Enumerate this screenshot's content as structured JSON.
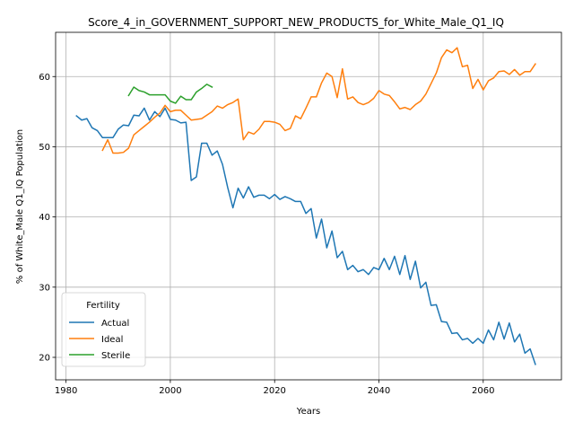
{
  "chart_data": {
    "type": "line",
    "title": "Score_4_in_GOVERNMENT_SUPPORT_NEW_PRODUCTS_for_White_Male_Q1_IQ",
    "xlabel": "Years",
    "ylabel": "% of White_Male Q1_IQ Population",
    "xlim": [
      1978,
      2075
    ],
    "ylim": [
      16.8,
      66.3
    ],
    "xticks": [
      1980,
      2000,
      2020,
      2040,
      2060
    ],
    "yticks": [
      20,
      30,
      40,
      50,
      60
    ],
    "grid": true,
    "legend": {
      "title": "Fertility",
      "position": "lower-left"
    },
    "series": [
      {
        "name": "Actual",
        "color": "#1f77b4",
        "x": [
          1982,
          1983,
          1984,
          1985,
          1986,
          1987,
          1988,
          1989,
          1990,
          1991,
          1992,
          1993,
          1994,
          1995,
          1996,
          1997,
          1998,
          1999,
          2000,
          2001,
          2002,
          2003,
          2004,
          2005,
          2006,
          2007,
          2008,
          2009,
          2010,
          2011,
          2012,
          2013,
          2014,
          2015,
          2016,
          2017,
          2018,
          2019,
          2020,
          2021,
          2022,
          2023,
          2024,
          2025,
          2026,
          2027,
          2028,
          2029,
          2030,
          2031,
          2032,
          2033,
          2034,
          2035,
          2036,
          2037,
          2038,
          2039,
          2040,
          2041,
          2042,
          2043,
          2044,
          2045,
          2046,
          2047,
          2048,
          2049,
          2050,
          2051,
          2052,
          2053,
          2054,
          2055,
          2056,
          2057,
          2058,
          2059,
          2060,
          2061,
          2062,
          2063,
          2064,
          2065,
          2066,
          2067,
          2068,
          2069,
          2070
        ],
        "values": [
          54.4,
          53.8,
          54.0,
          52.7,
          52.3,
          51.3,
          51.3,
          51.3,
          52.5,
          53.1,
          53.0,
          54.5,
          54.4,
          55.5,
          53.8,
          55.0,
          54.3,
          55.5,
          53.9,
          53.8,
          53.4,
          53.5,
          45.2,
          45.7,
          50.5,
          50.5,
          48.8,
          49.4,
          47.5,
          44.2,
          41.3,
          44.1,
          42.7,
          44.3,
          42.8,
          43.1,
          43.1,
          42.6,
          43.2,
          42.5,
          42.9,
          42.6,
          42.2,
          42.2,
          40.5,
          41.2,
          37.0,
          39.7,
          35.6,
          38.0,
          34.2,
          35.1,
          32.5,
          33.1,
          32.2,
          32.5,
          31.8,
          32.8,
          32.5,
          34.1,
          32.5,
          34.4,
          31.8,
          34.5,
          31.1,
          33.7,
          29.9,
          30.7,
          27.4,
          27.5,
          25.1,
          25.0,
          23.4,
          23.5,
          22.5,
          22.7,
          22.0,
          22.7,
          22.0,
          23.9,
          22.5,
          25.0,
          22.6,
          24.9,
          22.2,
          23.3,
          20.6,
          21.2,
          19.0
        ]
      },
      {
        "name": "Ideal",
        "color": "#ff7f0e",
        "x": [
          1987,
          1988,
          1989,
          1990,
          1991,
          1992,
          1993,
          1994,
          1995,
          1996,
          1997,
          1998,
          1999,
          2000,
          2001,
          2002,
          2003,
          2004,
          2005,
          2006,
          2007,
          2008,
          2009,
          2010,
          2011,
          2012,
          2013,
          2014,
          2015,
          2016,
          2017,
          2018,
          2019,
          2020,
          2021,
          2022,
          2023,
          2024,
          2025,
          2026,
          2027,
          2028,
          2029,
          2030,
          2031,
          2032,
          2033,
          2034,
          2035,
          2036,
          2037,
          2038,
          2039,
          2040,
          2041,
          2042,
          2043,
          2044,
          2045,
          2046,
          2047,
          2048,
          2049,
          2050,
          2051,
          2052,
          2053,
          2054,
          2055,
          2056,
          2057,
          2058,
          2059,
          2060,
          2061,
          2062,
          2063,
          2064,
          2065,
          2066,
          2067,
          2068,
          2069,
          2070
        ],
        "values": [
          49.5,
          51.0,
          49.1,
          49.1,
          49.2,
          49.8,
          51.7,
          52.3,
          52.9,
          53.5,
          54.2,
          54.8,
          55.9,
          55.0,
          55.2,
          55.2,
          54.5,
          53.8,
          53.9,
          54.0,
          54.5,
          55.0,
          55.8,
          55.5,
          56.0,
          56.3,
          56.8,
          51.0,
          52.1,
          51.8,
          52.5,
          53.6,
          53.6,
          53.5,
          53.2,
          52.3,
          52.6,
          54.4,
          54.0,
          55.5,
          57.1,
          57.1,
          59.1,
          60.5,
          60.0,
          57.0,
          61.1,
          56.8,
          57.1,
          56.3,
          56.0,
          56.3,
          56.9,
          58.0,
          57.5,
          57.3,
          56.4,
          55.4,
          55.6,
          55.3,
          56.0,
          56.5,
          57.5,
          59.0,
          60.5,
          62.7,
          63.8,
          63.4,
          64.1,
          61.4,
          61.6,
          58.3,
          59.6,
          58.1,
          59.4,
          59.8,
          60.7,
          60.8,
          60.3,
          61.0,
          60.2,
          60.7,
          60.7,
          61.8
        ]
      },
      {
        "name": "Sterile",
        "color": "#2ca02c",
        "x": [
          1992,
          1993,
          1994,
          1995,
          1996,
          1997,
          1998,
          1999,
          2000,
          2001,
          2002,
          2003,
          2004,
          2005,
          2006,
          2007,
          2008
        ],
        "values": [
          57.3,
          58.5,
          58.0,
          57.8,
          57.4,
          57.4,
          57.4,
          57.4,
          56.5,
          56.2,
          57.2,
          56.7,
          56.7,
          57.8,
          58.3,
          58.9,
          58.5
        ]
      }
    ]
  }
}
